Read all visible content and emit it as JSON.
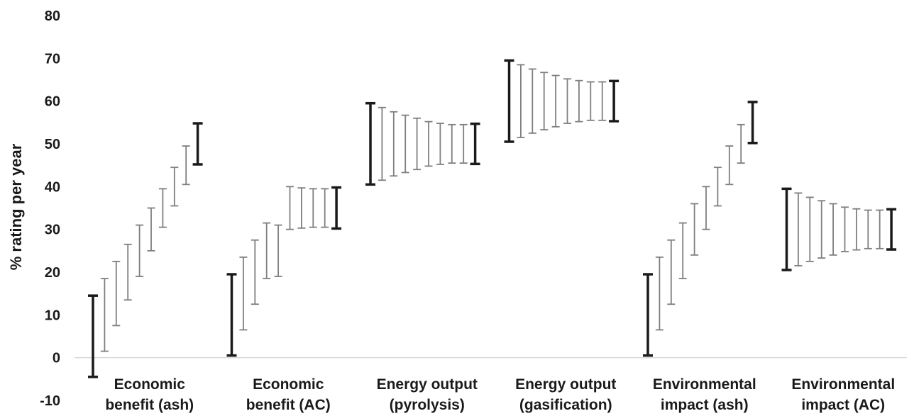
{
  "chart_data": {
    "type": "error-bar range",
    "title": "",
    "xlabel": "",
    "ylabel": "% rating per year",
    "ylim": [
      -10,
      80
    ],
    "yticks": [
      -10,
      0,
      10,
      20,
      30,
      40,
      50,
      60,
      70,
      80
    ],
    "grid": false,
    "legend": "none",
    "colors": {
      "endpoint": "#1a1a1a",
      "intermediate": "#7f7f7f",
      "axis": "#d9d9d9"
    },
    "categories": [
      {
        "label_lines": [
          "Economic",
          "benefit (ash)"
        ],
        "ranges": [
          [
            -4.5,
            14.5
          ],
          [
            1.5,
            18.5
          ],
          [
            7.5,
            22.5
          ],
          [
            13.5,
            26.5
          ],
          [
            19,
            31
          ],
          [
            25,
            35
          ],
          [
            30.5,
            39.5
          ],
          [
            35.5,
            44.5
          ],
          [
            40.5,
            49.5
          ],
          [
            45.2,
            54.8
          ]
        ]
      },
      {
        "label_lines": [
          "Economic",
          "benefit (AC)"
        ],
        "ranges": [
          [
            0.5,
            19.5
          ],
          [
            6.5,
            23.5
          ],
          [
            12.5,
            27.5
          ],
          [
            18.5,
            31.5
          ],
          [
            19,
            31
          ],
          [
            30,
            40
          ],
          [
            30.3,
            39.7
          ],
          [
            30.5,
            39.5
          ],
          [
            30.5,
            39.5
          ],
          [
            30.2,
            39.8
          ]
        ]
      },
      {
        "label_lines": [
          "Energy output",
          "(pyrolysis)"
        ],
        "ranges": [
          [
            40.5,
            59.5
          ],
          [
            41.5,
            58.5
          ],
          [
            42.5,
            57.5
          ],
          [
            43.3,
            56.7
          ],
          [
            44,
            56
          ],
          [
            44.8,
            55.2
          ],
          [
            45.2,
            54.8
          ],
          [
            45.5,
            54.5
          ],
          [
            45.5,
            54.5
          ],
          [
            45.3,
            54.7
          ]
        ]
      },
      {
        "label_lines": [
          "Energy output",
          "(gasification)"
        ],
        "ranges": [
          [
            50.5,
            69.5
          ],
          [
            51.5,
            68.5
          ],
          [
            52.5,
            67.5
          ],
          [
            53.3,
            66.7
          ],
          [
            54,
            66
          ],
          [
            54.8,
            65.2
          ],
          [
            55.2,
            64.8
          ],
          [
            55.5,
            64.5
          ],
          [
            55.5,
            64.5
          ],
          [
            55.3,
            64.7
          ]
        ]
      },
      {
        "label_lines": [
          "Environmental",
          "impact (ash)"
        ],
        "ranges": [
          [
            0.5,
            19.5
          ],
          [
            6.5,
            23.5
          ],
          [
            12.5,
            27.5
          ],
          [
            18.5,
            31.5
          ],
          [
            24,
            36
          ],
          [
            30,
            40
          ],
          [
            35.5,
            44.5
          ],
          [
            40.5,
            49.5
          ],
          [
            45.5,
            54.5
          ],
          [
            50.2,
            59.8
          ]
        ]
      },
      {
        "label_lines": [
          "Environmental",
          "impact (AC)"
        ],
        "ranges": [
          [
            20.5,
            39.5
          ],
          [
            21.5,
            38.5
          ],
          [
            22.5,
            37.5
          ],
          [
            23.3,
            36.7
          ],
          [
            24,
            36
          ],
          [
            24.8,
            35.2
          ],
          [
            25.2,
            34.8
          ],
          [
            25.5,
            34.5
          ],
          [
            25.5,
            34.5
          ],
          [
            25.3,
            34.7
          ]
        ]
      }
    ]
  }
}
